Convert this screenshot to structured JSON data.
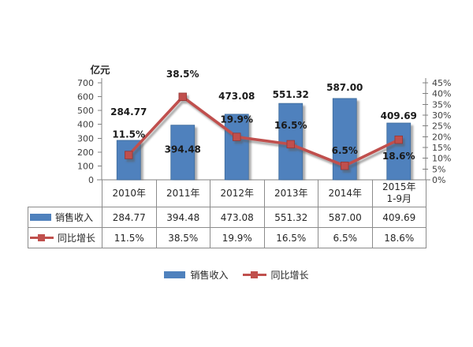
{
  "chart_data": {
    "type": "bar+line",
    "title": "",
    "unit_label": "亿元",
    "grid": false,
    "legend": {
      "position": "bottom"
    },
    "categories": [
      "2010年",
      "2011年",
      "2012年",
      "2013年",
      "2014年",
      "2015年\n1-9月"
    ],
    "series": [
      {
        "name": "销售收入",
        "type": "bar",
        "axis": "left",
        "color": "#4f81bd",
        "values": [
          284.77,
          394.48,
          473.08,
          551.32,
          587.0,
          409.69
        ],
        "labels": [
          "284.77",
          "394.48",
          "473.08",
          "551.32",
          "587.00",
          "409.69"
        ]
      },
      {
        "name": "同比增长",
        "type": "line",
        "axis": "right",
        "color": "#c0504d",
        "values": [
          11.5,
          38.5,
          19.9,
          16.5,
          6.5,
          18.6
        ],
        "labels": [
          "11.5%",
          "38.5%",
          "19.9%",
          "16.5%",
          "6.5%",
          "18.6%"
        ]
      }
    ],
    "left_axis": {
      "min": 0,
      "max": 700,
      "step": 100,
      "tick_labels": [
        "0",
        "100",
        "200",
        "300",
        "400",
        "500",
        "600",
        "700"
      ]
    },
    "right_axis": {
      "min": 0,
      "max": 45,
      "step": 5,
      "tick_labels": [
        "0%",
        "5%",
        "10%",
        "15%",
        "20%",
        "25%",
        "30%",
        "35%",
        "40%",
        "45%"
      ]
    }
  },
  "table": {
    "columns": [
      "2010年",
      "2011年",
      "2012年",
      "2013年",
      "2014年",
      "2015年\n1-9月"
    ],
    "row_headers": [
      "销售收入",
      "同比增长"
    ],
    "rows": [
      [
        "284.77",
        "394.48",
        "473.08",
        "551.32",
        "587.00",
        "409.69"
      ],
      [
        "11.5%",
        "38.5%",
        "19.9%",
        "16.5%",
        "6.5%",
        "18.6%"
      ]
    ]
  },
  "colors": {
    "bar": "#4f81bd",
    "line": "#c0504d",
    "axis": "#808080",
    "border": "#8c8c8c",
    "text": "#262626"
  }
}
